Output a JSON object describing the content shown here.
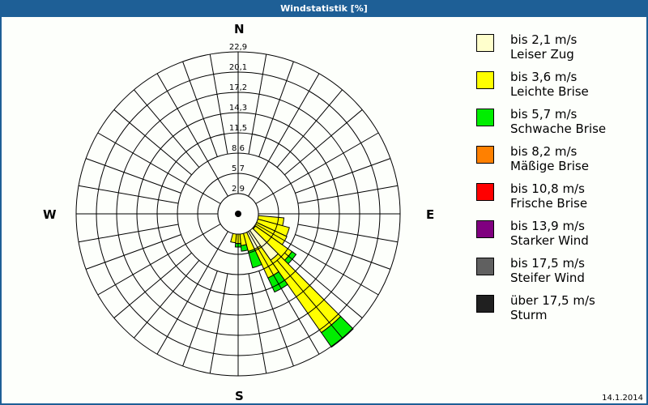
{
  "window": {
    "title": "Windstatistik [%]"
  },
  "compass": {
    "n": "N",
    "e": "E",
    "s": "S",
    "w": "W"
  },
  "footer": {
    "date": "14.1.2014"
  },
  "legend": [
    {
      "range": "bis 2,1 m/s",
      "name": "Leiser Zug",
      "color": "#ffffcc"
    },
    {
      "range": "bis 3,6 m/s",
      "name": "Leichte Brise",
      "color": "#ffff00"
    },
    {
      "range": "bis 5,7 m/s",
      "name": "Schwache Brise",
      "color": "#00ee00"
    },
    {
      "range": "bis 8,2 m/s",
      "name": "Mäßige Brise",
      "color": "#ff8000"
    },
    {
      "range": "bis 10,8 m/s",
      "name": "Frische Brise",
      "color": "#ff0000"
    },
    {
      "range": "bis 13,9 m/s",
      "name": "Starker Wind",
      "color": "#800080"
    },
    {
      "range": "bis 17,5 m/s",
      "name": "Steifer Wind",
      "color": "#606060"
    },
    {
      "range": "über 17,5 m/s",
      "name": "Sturm",
      "color": "#202020"
    }
  ],
  "chart_data": {
    "type": "polar-bar (wind rose)",
    "title": "Windstatistik [%]",
    "unit": "%",
    "radial_ticks": [
      "2,9",
      "5,7",
      "8,6",
      "11,5",
      "14,3",
      "17,2",
      "20,1",
      "22,9"
    ],
    "radial_max": 22.9,
    "sector_width_deg": 10,
    "series_names": [
      "Leiser Zug",
      "Leichte Brise",
      "Schwache Brise",
      "Mäßige Brise",
      "Frische Brise",
      "Starker Wind",
      "Steifer Wind",
      "Sturm"
    ],
    "sectors": [
      {
        "bearing": 100,
        "values": [
          1.5,
          5.0,
          0,
          0,
          0,
          0,
          0,
          0
        ]
      },
      {
        "bearing": 110,
        "values": [
          2.0,
          5.5,
          0,
          0,
          0,
          0,
          0,
          0
        ]
      },
      {
        "bearing": 120,
        "values": [
          2.0,
          5.6,
          0,
          0,
          0,
          0,
          0,
          0
        ]
      },
      {
        "bearing": 130,
        "values": [
          3.0,
          6.3,
          0.7,
          0,
          0,
          0,
          0,
          0
        ]
      },
      {
        "bearing": 140,
        "values": [
          8.0,
          12.5,
          2.5,
          0,
          0,
          0,
          0,
          0
        ]
      },
      {
        "bearing": 150,
        "values": [
          5.5,
          4.5,
          2.2,
          0,
          0,
          0,
          0,
          0
        ]
      },
      {
        "bearing": 160,
        "values": [
          2.5,
          3.0,
          2.4,
          0,
          0,
          0,
          0,
          0
        ]
      },
      {
        "bearing": 170,
        "values": [
          2.0,
          2.5,
          0.8,
          0,
          0,
          0,
          0,
          0
        ]
      },
      {
        "bearing": 180,
        "values": [
          2.0,
          2.2,
          0.5,
          0,
          0,
          0,
          0,
          0
        ]
      },
      {
        "bearing": 190,
        "values": [
          1.5,
          2.6,
          0,
          0,
          0,
          0,
          0,
          0
        ]
      },
      {
        "bearing": 270,
        "values": [
          0.6,
          0,
          0.7,
          0,
          0,
          0,
          0,
          0
        ]
      },
      {
        "bearing": 280,
        "values": [
          0.4,
          0.4,
          0,
          0,
          0,
          0,
          0,
          0
        ]
      },
      {
        "bearing": 90,
        "values": [
          0.3,
          0.3,
          0,
          0,
          0,
          0,
          0,
          0
        ]
      }
    ]
  }
}
